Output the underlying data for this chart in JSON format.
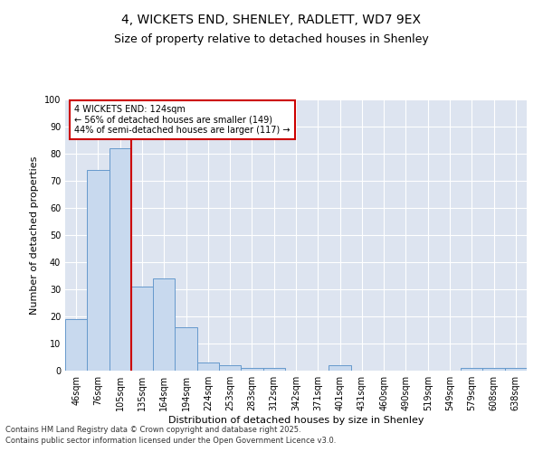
{
  "title1": "4, WICKETS END, SHENLEY, RADLETT, WD7 9EX",
  "title2": "Size of property relative to detached houses in Shenley",
  "xlabel": "Distribution of detached houses by size in Shenley",
  "ylabel": "Number of detached properties",
  "categories": [
    "46sqm",
    "76sqm",
    "105sqm",
    "135sqm",
    "164sqm",
    "194sqm",
    "224sqm",
    "253sqm",
    "283sqm",
    "312sqm",
    "342sqm",
    "371sqm",
    "401sqm",
    "431sqm",
    "460sqm",
    "490sqm",
    "519sqm",
    "549sqm",
    "579sqm",
    "608sqm",
    "638sqm"
  ],
  "values": [
    19,
    74,
    82,
    31,
    34,
    16,
    3,
    2,
    1,
    1,
    0,
    0,
    2,
    0,
    0,
    0,
    0,
    0,
    1,
    1,
    1
  ],
  "bar_color": "#c8d9ee",
  "bar_edge_color": "#6699cc",
  "property_line_index": 2,
  "annotation_text": "4 WICKETS END: 124sqm\n← 56% of detached houses are smaller (149)\n44% of semi-detached houses are larger (117) →",
  "annotation_box_color": "#ffffff",
  "annotation_box_edge_color": "#cc0000",
  "vline_color": "#cc0000",
  "ylim": [
    0,
    100
  ],
  "yticks": [
    0,
    10,
    20,
    30,
    40,
    50,
    60,
    70,
    80,
    90,
    100
  ],
  "background_color": "#dde4f0",
  "footer1": "Contains HM Land Registry data © Crown copyright and database right 2025.",
  "footer2": "Contains public sector information licensed under the Open Government Licence v3.0.",
  "title_fontsize": 10,
  "subtitle_fontsize": 9,
  "axis_fontsize": 8,
  "tick_fontsize": 7,
  "footer_fontsize": 6
}
